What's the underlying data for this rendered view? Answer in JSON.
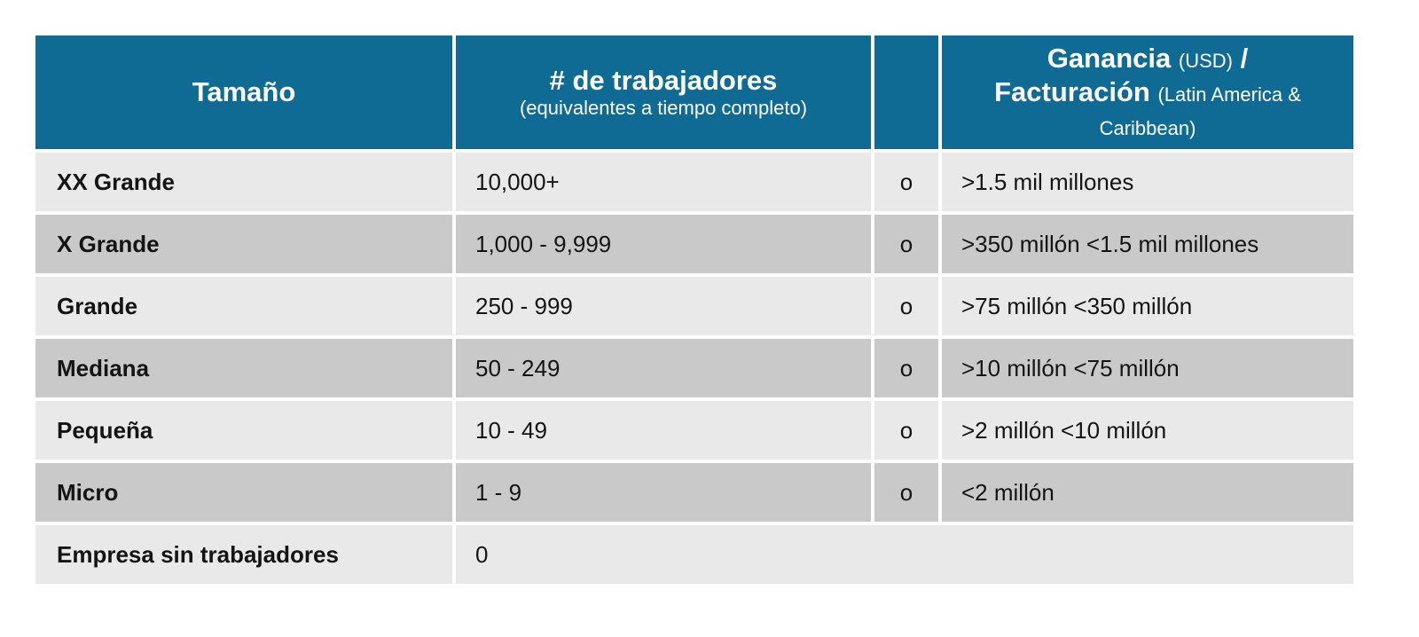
{
  "colors": {
    "header_bg": "#0f6b93",
    "header_text": "#ffffff",
    "row_light": "#e9e9e9",
    "row_dark": "#c9c9c9",
    "body_text": "#141414",
    "page_bg": "#ffffff"
  },
  "table": {
    "header": {
      "size": "Tamaño",
      "workers_main": "# de trabajadores",
      "workers_sub": "(equivalentes a tiempo completo)",
      "connector": "",
      "revenue_bold_1": "Ganancia",
      "revenue_small_1": "(USD)",
      "revenue_bold_2": "/",
      "revenue_bold_3": "Facturación",
      "revenue_small_2": "(Latin America & Caribbean)"
    },
    "rows": [
      {
        "size": "XX Grande",
        "workers": "10,000+",
        "connector": "o",
        "revenue": ">1.5 mil millones",
        "shade": "light"
      },
      {
        "size": "X Grande",
        "workers": "1,000 - 9,999",
        "connector": "o",
        "revenue": ">350 millón <1.5 mil millones",
        "shade": "dark"
      },
      {
        "size": "Grande",
        "workers": "250 - 999",
        "connector": "o",
        "revenue": ">75 millón <350 millón",
        "shade": "light"
      },
      {
        "size": "Mediana",
        "workers": "50 - 249",
        "connector": "o",
        "revenue": ">10 millón <75 millón",
        "shade": "dark"
      },
      {
        "size": "Pequeña",
        "workers": "10 - 49",
        "connector": "o",
        "revenue": ">2 millón <10 millón",
        "shade": "light"
      },
      {
        "size": "Micro",
        "workers": "1 - 9",
        "connector": "o",
        "revenue": "<2 millón",
        "shade": "dark"
      },
      {
        "size": "Empresa sin trabajadores",
        "workers": "0",
        "connector": "",
        "revenue": "",
        "shade": "light"
      }
    ]
  }
}
